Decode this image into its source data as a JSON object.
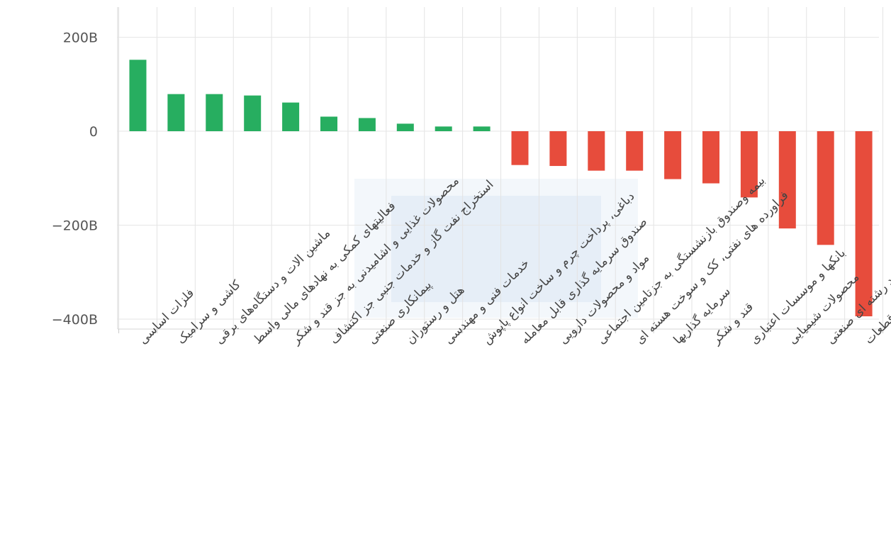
{
  "chart_data": {
    "type": "bar",
    "title": "",
    "xlabel": "",
    "ylabel": "",
    "ylim": [
      -400,
      200
    ],
    "yticks": [
      200,
      0,
      -200,
      -400
    ],
    "ytick_labels": [
      "200B",
      "0",
      "−200B",
      "−400B"
    ],
    "unit": "B",
    "grid": true,
    "legend": "none",
    "positive_color": "#27ae60",
    "negative_color": "#e74c3c",
    "categories": [
      "فلزات اساسی",
      "کاشی و سرامیک",
      "ماشین الات و دستگاه‌های برقی",
      "فعالیتهای کمکی به نهادهای مالی واسط",
      "محصولات غذایی و اشامیدنی به جز قند و شکر",
      "استخراج نفت گاز و خدمات جنبی جز اکتشاف",
      "پیمانکاری صنعتی",
      "هتل و رستوران",
      "خدمات فنی و مهندسی",
      "دباغی، پرداخت چرم و ساخت انواع پاپوش",
      "صندوق سرمایه گذاری قابل معامله",
      "مواد و محصولات دارویی",
      "بیمه وصندوق بازنشستگی به جزتامین اجتماعی",
      "فراورده های نفتی، کک و سوخت هسته ای",
      "سرمایه گذاریها",
      "قند و شکر",
      "بانکها و موسسات اعتباری",
      "محصولات شیمیایی",
      "شرکتهای چند رشته ای صنعتی",
      "خودرو و ساخت قطعات"
    ],
    "values": [
      152,
      79,
      79,
      76,
      61,
      31,
      28,
      16,
      10,
      10,
      -72,
      -74,
      -84,
      -84,
      -102,
      -111,
      -141,
      -207,
      -242,
      -394
    ]
  }
}
